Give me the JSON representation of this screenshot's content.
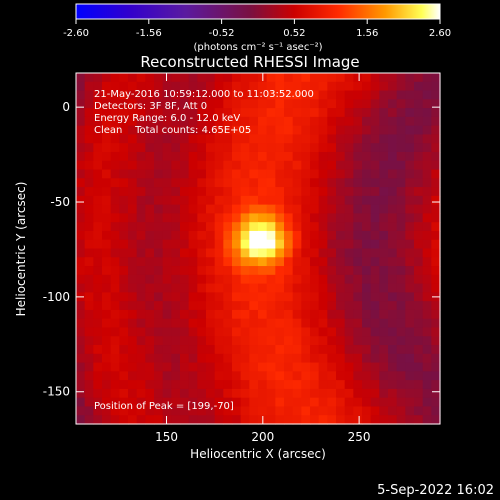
{
  "chart_data": {
    "type": "heatmap",
    "title": "Reconstructed RHESSI Image",
    "xlabel": "Heliocentric X (arcsec)",
    "ylabel": "Heliocentric Y (arcsec)",
    "xlim": [
      103,
      292
    ],
    "ylim": [
      -167,
      18
    ],
    "xticks": [
      150,
      200,
      250
    ],
    "yticks": [
      0,
      -50,
      -100,
      -150
    ],
    "peak": [
      199,
      -70
    ],
    "colorbar": {
      "label": "(photons cm⁻² s⁻¹ asec⁻²)",
      "range": [
        -2.6,
        2.6
      ],
      "ticks": [
        "-2.60",
        "-1.56",
        "-0.52",
        "0.52",
        "1.56",
        "2.60"
      ]
    },
    "annotations": [
      "21-May-2016 10:59:12.000 to 11:03:52.000",
      "Detectors: 3F 8F, Att 0",
      "Energy Range: 6.0 - 12.0 keV",
      "Clean    Total counts: 4.65E+05"
    ],
    "peak_label": "Position of Peak = [199,-70]",
    "timestamp": "5-Sep-2022 16:02"
  }
}
